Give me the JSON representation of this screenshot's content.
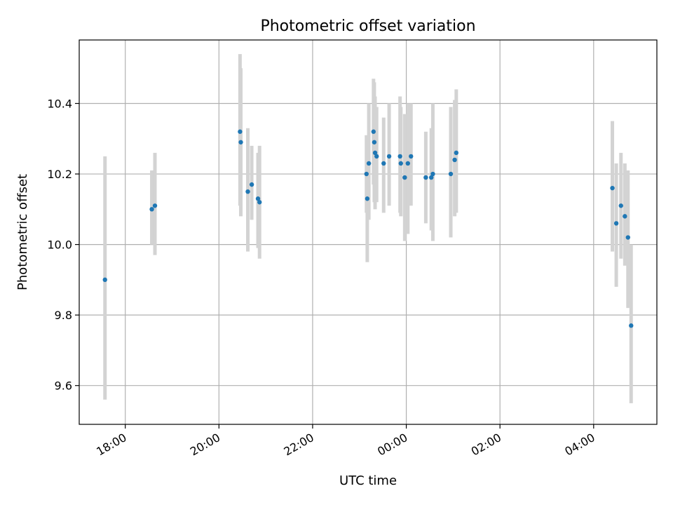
{
  "chart_data": {
    "type": "scatter",
    "title": "Photometric offset variation",
    "xlabel": "UTC time",
    "ylabel": "Photometric offset",
    "x_axis": {
      "kind": "time",
      "reference_date_utc": "2000-01-01",
      "xlim": [
        "1999-12-31T17:01",
        "2000-01-01T05:21"
      ],
      "ticks": [
        {
          "value": "1999-12-31T18:00",
          "label": "18:00"
        },
        {
          "value": "1999-12-31T20:00",
          "label": "20:00"
        },
        {
          "value": "1999-12-31T22:00",
          "label": "22:00"
        },
        {
          "value": "2000-01-01T00:00",
          "label": "00:00"
        },
        {
          "value": "2000-01-01T02:00",
          "label": "02:00"
        },
        {
          "value": "2000-01-01T04:00",
          "label": "04:00"
        }
      ]
    },
    "y_axis": {
      "ylim": [
        9.49,
        10.58
      ],
      "ticks": [
        {
          "value": 9.6,
          "label": "9.6"
        },
        {
          "value": 9.8,
          "label": "9.8"
        },
        {
          "value": 10.0,
          "label": "10.0"
        },
        {
          "value": 10.2,
          "label": "10.2"
        },
        {
          "value": 10.4,
          "label": "10.4"
        }
      ]
    },
    "grid": true,
    "legend": "none",
    "colors": {
      "points": "#1f77b4",
      "error_bars": "#d3d3d3"
    },
    "series": [
      {
        "points": [
          {
            "x": "1999-12-31T17:34",
            "y": 9.9,
            "ylow": 9.56,
            "yhigh": 10.25
          },
          {
            "x": "1999-12-31T18:34",
            "y": 10.1,
            "ylow": 10.0,
            "yhigh": 10.21
          },
          {
            "x": "1999-12-31T18:38",
            "y": 10.11,
            "ylow": 9.97,
            "yhigh": 10.26
          },
          {
            "x": "1999-12-31T20:27",
            "y": 10.32,
            "ylow": 10.11,
            "yhigh": 10.54
          },
          {
            "x": "1999-12-31T20:28",
            "y": 10.29,
            "ylow": 10.08,
            "yhigh": 10.5
          },
          {
            "x": "1999-12-31T20:37",
            "y": 10.15,
            "ylow": 9.98,
            "yhigh": 10.33
          },
          {
            "x": "1999-12-31T20:42",
            "y": 10.17,
            "ylow": 10.07,
            "yhigh": 10.28
          },
          {
            "x": "1999-12-31T20:50",
            "y": 10.13,
            "ylow": 9.99,
            "yhigh": 10.26
          },
          {
            "x": "1999-12-31T20:52",
            "y": 10.12,
            "ylow": 9.96,
            "yhigh": 10.28
          },
          {
            "x": "1999-12-31T23:09",
            "y": 10.2,
            "ylow": 10.09,
            "yhigh": 10.31
          },
          {
            "x": "1999-12-31T23:10",
            "y": 10.13,
            "ylow": 9.95,
            "yhigh": 10.3
          },
          {
            "x": "1999-12-31T23:12",
            "y": 10.23,
            "ylow": 10.07,
            "yhigh": 10.4
          },
          {
            "x": "1999-12-31T23:18",
            "y": 10.32,
            "ylow": 10.17,
            "yhigh": 10.47
          },
          {
            "x": "1999-12-31T23:19",
            "y": 10.29,
            "ylow": 10.12,
            "yhigh": 10.46
          },
          {
            "x": "1999-12-31T23:20",
            "y": 10.26,
            "ylow": 10.1,
            "yhigh": 10.42
          },
          {
            "x": "1999-12-31T23:22",
            "y": 10.25,
            "ylow": 10.12,
            "yhigh": 10.39
          },
          {
            "x": "1999-12-31T23:31",
            "y": 10.23,
            "ylow": 10.09,
            "yhigh": 10.36
          },
          {
            "x": "1999-12-31T23:38",
            "y": 10.25,
            "ylow": 10.11,
            "yhigh": 10.4
          },
          {
            "x": "1999-12-31T23:52",
            "y": 10.25,
            "ylow": 10.09,
            "yhigh": 10.42
          },
          {
            "x": "1999-12-31T23:53",
            "y": 10.23,
            "ylow": 10.08,
            "yhigh": 10.39
          },
          {
            "x": "1999-12-31T23:58",
            "y": 10.19,
            "ylow": 10.01,
            "yhigh": 10.37
          },
          {
            "x": "2000-01-01T00:02",
            "y": 10.23,
            "ylow": 10.03,
            "yhigh": 10.4
          },
          {
            "x": "2000-01-01T00:06",
            "y": 10.25,
            "ylow": 10.11,
            "yhigh": 10.4
          },
          {
            "x": "2000-01-01T00:25",
            "y": 10.19,
            "ylow": 10.06,
            "yhigh": 10.32
          },
          {
            "x": "2000-01-01T00:32",
            "y": 10.19,
            "ylow": 10.04,
            "yhigh": 10.33
          },
          {
            "x": "2000-01-01T00:34",
            "y": 10.2,
            "ylow": 10.01,
            "yhigh": 10.4
          },
          {
            "x": "2000-01-01T00:57",
            "y": 10.2,
            "ylow": 10.02,
            "yhigh": 10.39
          },
          {
            "x": "2000-01-01T01:02",
            "y": 10.24,
            "ylow": 10.08,
            "yhigh": 10.41
          },
          {
            "x": "2000-01-01T01:04",
            "y": 10.26,
            "ylow": 10.09,
            "yhigh": 10.44
          },
          {
            "x": "2000-01-01T04:24",
            "y": 10.16,
            "ylow": 9.98,
            "yhigh": 10.35
          },
          {
            "x": "2000-01-01T04:29",
            "y": 10.06,
            "ylow": 9.88,
            "yhigh": 10.23
          },
          {
            "x": "2000-01-01T04:35",
            "y": 10.11,
            "ylow": 9.96,
            "yhigh": 10.26
          },
          {
            "x": "2000-01-01T04:40",
            "y": 10.08,
            "ylow": 9.94,
            "yhigh": 10.23
          },
          {
            "x": "2000-01-01T04:44",
            "y": 10.02,
            "ylow": 9.82,
            "yhigh": 10.21
          },
          {
            "x": "2000-01-01T04:48",
            "y": 9.77,
            "ylow": 9.55,
            "yhigh": 10.0
          }
        ]
      }
    ]
  }
}
